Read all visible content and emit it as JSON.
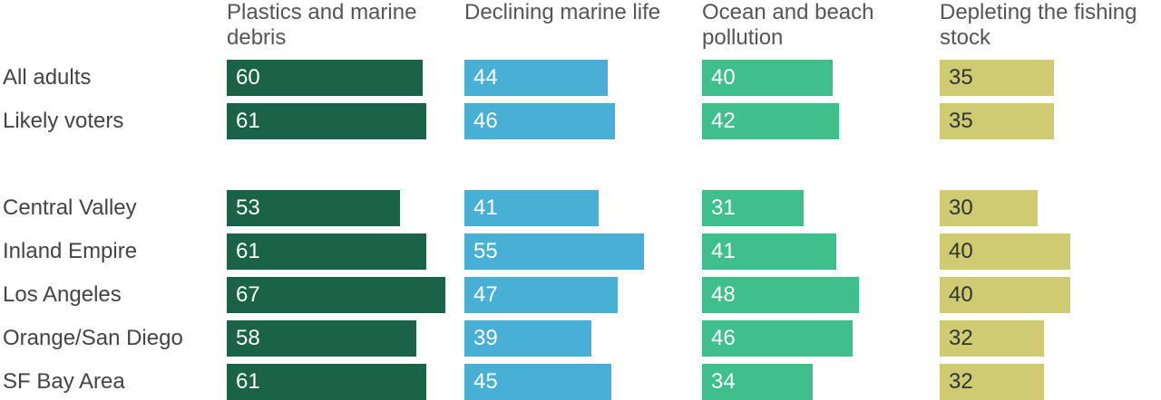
{
  "chart_data": {
    "type": "bar",
    "categories": [
      "All adults",
      "Likely voters",
      null,
      "Central Valley",
      "Inland Empire",
      "Los Angeles",
      "Orange/San Diego",
      "SF Bay Area"
    ],
    "series": [
      {
        "name": "Plastics and marine debris",
        "color": "#1b6348",
        "values": [
          60,
          61,
          null,
          53,
          61,
          67,
          58,
          61
        ]
      },
      {
        "name": "Declining marine life",
        "color": "#48b0d5",
        "values": [
          44,
          46,
          null,
          41,
          55,
          47,
          39,
          45
        ]
      },
      {
        "name": "Ocean and beach pollution",
        "color": "#3fbf8b",
        "values": [
          40,
          42,
          null,
          31,
          41,
          48,
          46,
          34
        ]
      },
      {
        "name": "Depleting the fishing stock",
        "color": "#cfcb73",
        "values": [
          35,
          35,
          null,
          30,
          40,
          40,
          32,
          32
        ]
      }
    ]
  }
}
